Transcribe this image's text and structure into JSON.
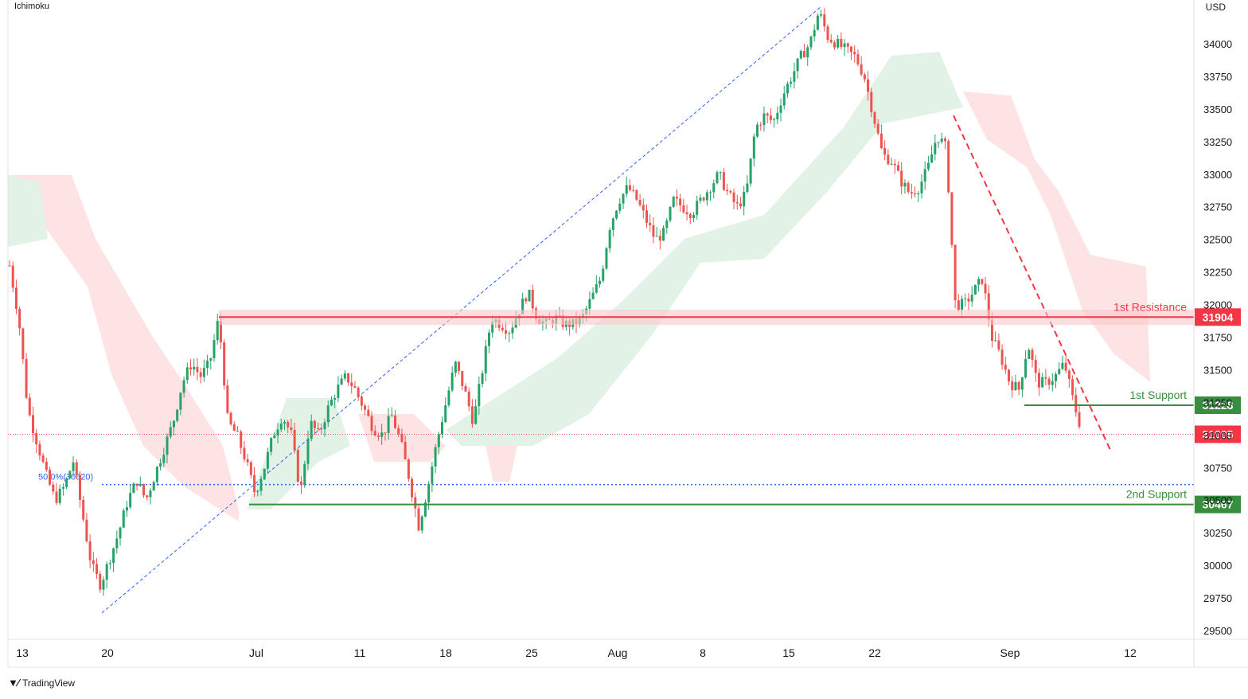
{
  "indicator": "Ichimoku",
  "currency": "USD",
  "watermark": "TradingView",
  "colors": {
    "up": "#26a269",
    "down": "#ef5350",
    "resistance": "#f23645",
    "support": "#388e3c",
    "cloud_bull": "#e3f2e6",
    "cloud_bear": "#fde3e3",
    "fib": "#2962ff"
  },
  "chart_data": {
    "type": "candlestick",
    "ylim": [
      29500,
      34250
    ],
    "y_ticks": [
      29500,
      29750,
      30000,
      30250,
      30500,
      30750,
      31000,
      31250,
      31500,
      31750,
      32000,
      32250,
      32500,
      32750,
      33000,
      33250,
      33500,
      33750,
      34000
    ],
    "x_ticks": [
      "13",
      "20",
      "Jul",
      "11",
      "18",
      "25",
      "Aug",
      "8",
      "15",
      "22",
      "Sep",
      "12"
    ],
    "price_path": [
      [
        0,
        32300
      ],
      [
        1,
        31900
      ],
      [
        2,
        31200
      ],
      [
        3,
        30950
      ],
      [
        4,
        30700
      ],
      [
        5,
        30500
      ],
      [
        6,
        30600
      ],
      [
        7,
        30800
      ],
      [
        8,
        30400
      ],
      [
        9,
        30000
      ],
      [
        10,
        29850
      ],
      [
        11,
        30050
      ],
      [
        12,
        30250
      ],
      [
        13,
        30500
      ],
      [
        14,
        30650
      ],
      [
        15,
        30500
      ],
      [
        16,
        30700
      ],
      [
        17,
        30900
      ],
      [
        18,
        31100
      ],
      [
        19,
        31400
      ],
      [
        20,
        31550
      ],
      [
        21,
        31450
      ],
      [
        22,
        31550
      ],
      [
        23,
        31900
      ],
      [
        24,
        31100
      ],
      [
        25,
        31000
      ],
      [
        26,
        30800
      ],
      [
        27,
        30550
      ],
      [
        28,
        30750
      ],
      [
        29,
        31000
      ],
      [
        30,
        31150
      ],
      [
        31,
        31000
      ],
      [
        32,
        30550
      ],
      [
        33,
        31100
      ],
      [
        34,
        31000
      ],
      [
        35,
        31200
      ],
      [
        36,
        31350
      ],
      [
        37,
        31450
      ],
      [
        38,
        31350
      ],
      [
        39,
        31200
      ],
      [
        40,
        31050
      ],
      [
        41,
        31000
      ],
      [
        42,
        31150
      ],
      [
        43,
        30950
      ],
      [
        44,
        30650
      ],
      [
        45,
        30300
      ],
      [
        46,
        30600
      ],
      [
        47,
        30950
      ],
      [
        48,
        31250
      ],
      [
        49,
        31550
      ],
      [
        50,
        31350
      ],
      [
        51,
        31100
      ],
      [
        52,
        31500
      ],
      [
        53,
        31900
      ],
      [
        54,
        31850
      ],
      [
        55,
        31800
      ],
      [
        56,
        31950
      ],
      [
        57,
        32100
      ],
      [
        58,
        31900
      ],
      [
        59,
        31850
      ],
      [
        60,
        31900
      ],
      [
        61,
        31850
      ],
      [
        62,
        31850
      ],
      [
        63,
        31900
      ],
      [
        64,
        32050
      ],
      [
        65,
        32200
      ],
      [
        66,
        32600
      ],
      [
        67,
        32800
      ],
      [
        68,
        32900
      ],
      [
        69,
        32800
      ],
      [
        70,
        32650
      ],
      [
        71,
        32500
      ],
      [
        72,
        32550
      ],
      [
        73,
        32800
      ],
      [
        74,
        32750
      ],
      [
        75,
        32700
      ],
      [
        76,
        32800
      ],
      [
        77,
        32900
      ],
      [
        78,
        33000
      ],
      [
        79,
        32850
      ],
      [
        80,
        32750
      ],
      [
        81,
        32850
      ],
      [
        82,
        33350
      ],
      [
        83,
        33450
      ],
      [
        84,
        33400
      ],
      [
        85,
        33600
      ],
      [
        86,
        33750
      ],
      [
        87,
        33900
      ],
      [
        88,
        34000
      ],
      [
        89,
        34250
      ],
      [
        90,
        34050
      ],
      [
        91,
        34000
      ],
      [
        92,
        33950
      ],
      [
        93,
        33900
      ],
      [
        94,
        33750
      ],
      [
        95,
        33450
      ],
      [
        96,
        33150
      ],
      [
        97,
        33100
      ],
      [
        98,
        32950
      ],
      [
        99,
        32850
      ],
      [
        100,
        32900
      ],
      [
        101,
        33050
      ],
      [
        102,
        33300
      ],
      [
        103,
        33200
      ],
      [
        104,
        32000
      ],
      [
        105,
        32000
      ],
      [
        106,
        32100
      ],
      [
        107,
        32200
      ],
      [
        108,
        31750
      ],
      [
        109,
        31600
      ],
      [
        110,
        31400
      ],
      [
        111,
        31350
      ],
      [
        112,
        31700
      ],
      [
        113,
        31400
      ],
      [
        114,
        31400
      ],
      [
        115,
        31450
      ],
      [
        116,
        31550
      ],
      [
        117,
        31250
      ],
      [
        118,
        31005
      ]
    ],
    "levels": [
      {
        "name": "1st Resistance",
        "value": 31904,
        "label": "31904",
        "type": "resistance"
      },
      {
        "name": "1st Support",
        "value": 31228,
        "label": "31228",
        "type": "support"
      },
      {
        "name": "2nd Support",
        "value": 30467,
        "label": "30467",
        "type": "support"
      }
    ],
    "current_price": {
      "value": 31005,
      "label": "31005"
    },
    "fib_label": "50.0%(30620)",
    "fib_value": 30620
  }
}
